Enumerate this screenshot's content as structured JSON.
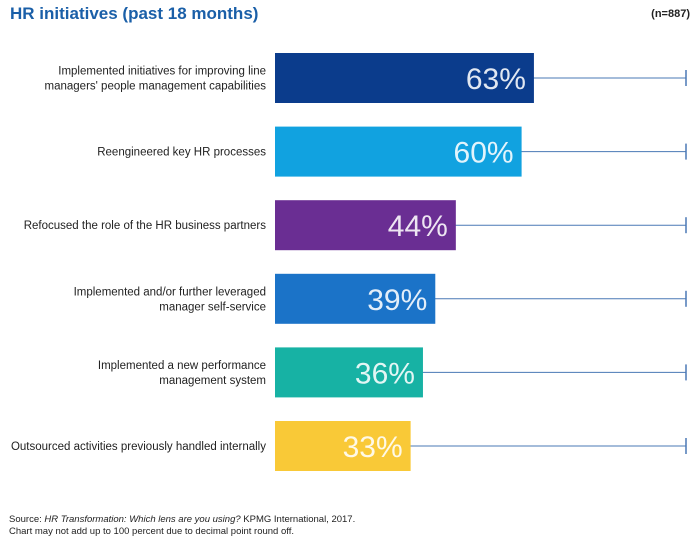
{
  "header": {
    "title": "HR initiatives (past 18 months)",
    "sample": "(n=887)"
  },
  "chart_data": {
    "type": "bar",
    "orientation": "horizontal",
    "title": "HR initiatives (past 18 months)",
    "xlim": [
      0,
      100
    ],
    "grid": false,
    "categories": [
      [
        "Implemented initiatives for improving line",
        "managers' people management capabilities"
      ],
      [
        "Reengineered key HR processes"
      ],
      [
        "Refocused the role of the HR business partners"
      ],
      [
        "Implemented and/or further leveraged",
        "manager self-service"
      ],
      [
        "Implemented a new performance",
        "management system"
      ],
      [
        "Outsourced activities previously handled internally"
      ]
    ],
    "values": [
      63,
      60,
      44,
      39,
      36,
      33
    ],
    "value_labels": [
      "63%",
      "60%",
      "44%",
      "39%",
      "36%",
      "33%"
    ],
    "colors": [
      "#0b3c8c",
      "#11a2e0",
      "#6a2e93",
      "#1b73c8",
      "#17b2a4",
      "#f9c937"
    ]
  },
  "footer": {
    "source_prefix": "Source: ",
    "source_title": "HR Transformation: Which lens are you using?",
    "source_suffix": " KPMG International, 2017.",
    "note": "Chart may not add up to 100 percent due to decimal point round off."
  }
}
